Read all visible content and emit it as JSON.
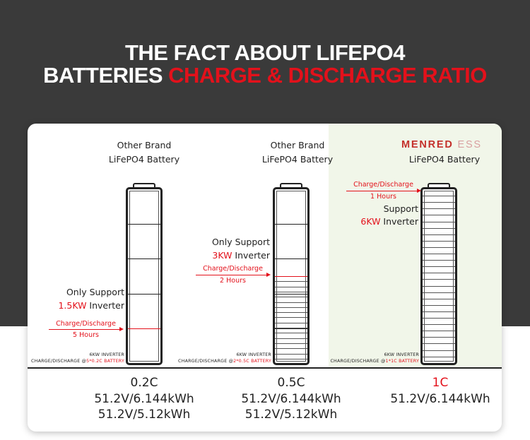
{
  "header": {
    "line1": "THE FACT ABOUT LIFEPO4",
    "line2_white": "BATTERIES ",
    "line2_red": "CHARGE & DISCHARGE RATIO"
  },
  "columns": [
    {
      "brand_line1": "Other Brand",
      "brand_line2": "LiFePO4 Battery",
      "support_line1": "Only Support",
      "support_power": "1.5KW",
      "support_suffix": " Inverter",
      "arrow_label": "Charge/Discharge",
      "arrow_time": "5 Hours",
      "inverter_note": "6KW INVERTER",
      "ratio_note_prefix": "CHARGE/DISCHARGE @",
      "ratio_note_red": "5*0.2C BATTERY",
      "rate": "0.2C",
      "specs": [
        "51.2V/6.144kWh",
        "51.2V/5.12kWh"
      ],
      "charged_fraction": 0.2,
      "cells": 5
    },
    {
      "brand_line1": "Other Brand",
      "brand_line2": "LiFePO4 Battery",
      "support_line1": "Only Support",
      "support_power": "3KW",
      "support_suffix": " Inverter",
      "arrow_label": "Charge/Discharge",
      "arrow_time": "2 Hours",
      "inverter_note": "6KW INVERTER",
      "ratio_note_prefix": "CHARGE/DISCHARGE @",
      "ratio_note_red": "2*0.5C BATTERY",
      "rate": "0.5C",
      "specs": [
        "51.2V/6.144kWh",
        "51.2V/5.12kWh"
      ],
      "charged_fraction": 0.5,
      "cells": 5
    },
    {
      "brand_name": "MENRED",
      "brand_suffix": " ESS",
      "brand_line2": "LiFePO4 Battery",
      "support_line1": "Support",
      "support_power": "6KW",
      "support_suffix": " Inverter",
      "arrow_label": "Charge/Discharge",
      "arrow_time": "1 Hours",
      "inverter_note": "6KW INVERTER",
      "ratio_note_prefix": "CHARGE/DISCHARGE @",
      "ratio_note_red": "1*1C BATTERY",
      "rate": "1C",
      "rate_color": "#e3111b",
      "specs": [
        "51.2V/6.144kWh"
      ],
      "charged_fraction": 1.0,
      "cells": 1
    }
  ],
  "colors": {
    "accent_red": "#e3111b",
    "dark_background": "#3a3a3a",
    "highlight_panel": "#f1f6e9"
  }
}
